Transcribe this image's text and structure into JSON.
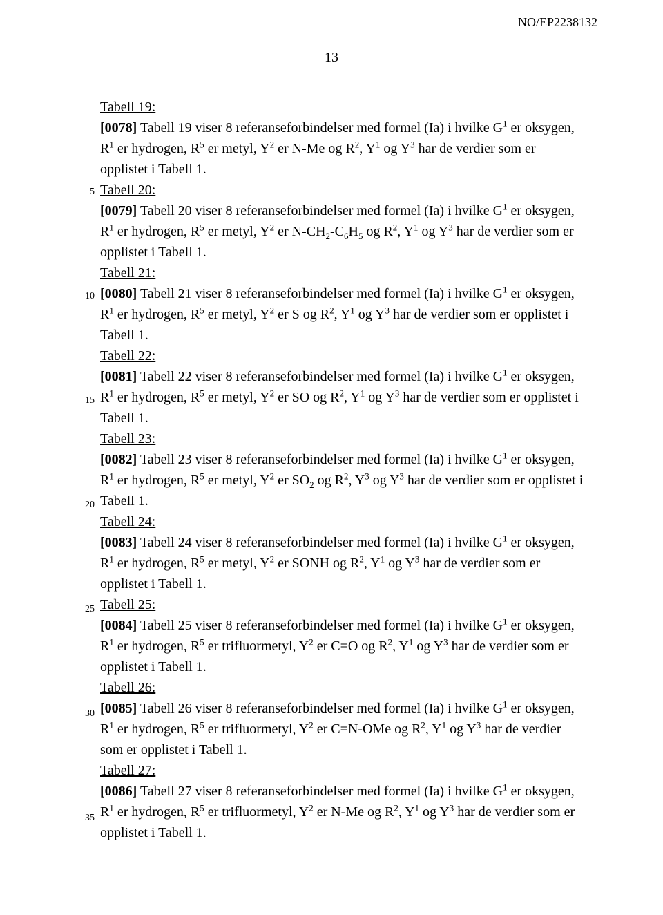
{
  "doc_header": "NO/EP2238132",
  "page_number": "13",
  "line_numbers": {
    "n5": "5",
    "n10": "10",
    "n15": "15",
    "n20": "20",
    "n25": "25",
    "n30": "30",
    "n35": "35"
  },
  "sections": [
    {
      "heading": "Tabell 19:",
      "num": "[0078]",
      "text_before": "  Tabell 19 viser 8 referanseforbindelser med formel (Ia) i hvilke G",
      "sup1": "1",
      "text1": " er oksygen, R",
      "sup2": "1",
      "text2": " er hydrogen, R",
      "sup3": "5",
      "text3": " er metyl, Y",
      "sup4": "2",
      "text4": " er N-Me og R",
      "sup5": "2",
      "text5": ", Y",
      "sup6": "1",
      "text6": " og Y",
      "sup7": "3",
      "text7": " har de verdier som er opplistet i Tabell 1."
    },
    {
      "heading": "Tabell 20:",
      "num": "[0079]",
      "text_before": "  Tabell 20 viser 8 referanseforbindelser med formel (Ia) i hvilke G",
      "sup1": "1",
      "text1": " er oksygen, R",
      "sup2": "1",
      "text2": " er hydrogen, R",
      "sup3": "5",
      "text3": " er metyl, Y",
      "sup4": "2",
      "text4": " er N-CH",
      "sub1": "2",
      "textsub1": "-C",
      "sub2": "6",
      "textsub2": "H",
      "sub3": "5",
      "textsub3": " og R",
      "sup5": "2",
      "text5": ", Y",
      "sup6": "1",
      "text6": " og Y",
      "sup7": "3",
      "text7": " har de verdier som er opplistet i Tabell 1."
    },
    {
      "heading": "Tabell 21:",
      "num": "[0080]",
      "text_before": "  Tabell 21 viser 8 referanseforbindelser med formel (Ia) i hvilke G",
      "sup1": "1",
      "text1": " er oksygen, R",
      "sup2": "1",
      "text2": " er hydrogen, R",
      "sup3": "5",
      "text3": " er metyl, Y",
      "sup4": "2",
      "text4": " er S og R",
      "sup5": "2",
      "text5": ", Y",
      "sup6": "1",
      "text6": " og Y",
      "sup7": "3",
      "text7": " har de verdier som er opplistet i Tabell 1."
    },
    {
      "heading": "Tabell 22:",
      "num": "[0081]",
      "text_before": "  Tabell 22 viser 8 referanseforbindelser med formel (Ia) i hvilke G",
      "sup1": "1",
      "text1": " er oksygen, R",
      "sup2": "1",
      "text2": " er hydrogen, R",
      "sup3": "5",
      "text3": " er metyl, Y",
      "sup4": "2",
      "text4": " er SO og R",
      "sup5": "2",
      "text5": ", Y",
      "sup6": "1",
      "text6": " og Y",
      "sup7": "3",
      "text7": " har de verdier som er opplistet i Tabell 1."
    },
    {
      "heading": "Tabell 23:",
      "num": "[0082]",
      "text_before": "  Tabell 23 viser 8 referanseforbindelser med formel (Ia) i hvilke G",
      "sup1": "1",
      "text1": " er oksygen, R",
      "sup2": "1",
      "text2": " er hydrogen, R",
      "sup3": "5",
      "text3": " er metyl, Y",
      "sup4": "2",
      "text4": " er SO",
      "sub1": "2",
      "textsub1": " og R",
      "sup5": "2",
      "text5": ", Y",
      "sup6": "3",
      "text6": " og Y",
      "sup7": "3",
      "text7": " har de verdier som er opplistet i Tabell 1."
    },
    {
      "heading": "Tabell 24:",
      "num": "[0083]",
      "text_before": "  Tabell 24 viser 8 referanseforbindelser med formel (Ia) i hvilke G",
      "sup1": "1",
      "text1": " er oksygen, R",
      "sup2": "1",
      "text2": " er hydrogen, R",
      "sup3": "5",
      "text3": " er metyl, Y",
      "sup4": "2",
      "text4": " er SONH og R",
      "sup5": "2",
      "text5": ", Y",
      "sup6": "1",
      "text6": " og Y",
      "sup7": "3",
      "text7": " har de verdier som er opplistet i Tabell 1."
    },
    {
      "heading": "Tabell 25:",
      "num": "[0084]",
      "text_before": "  Tabell 25 viser 8 referanseforbindelser med formel (Ia) i hvilke G",
      "sup1": "1",
      "text1": " er oksygen, R",
      "sup2": "1",
      "text2": " er hydrogen, R",
      "sup3": "5",
      "text3": " er trifluormetyl, Y",
      "sup4": "2",
      "text4": " er C=O og R",
      "sup5": "2",
      "text5": ", Y",
      "sup6": "1",
      "text6": " og Y",
      "sup7": "3",
      "text7": " har de verdier som er opplistet i Tabell 1."
    },
    {
      "heading": "Tabell 26:",
      "num": "[0085]",
      "text_before": "  Tabell 26 viser 8 referanseforbindelser med formel (Ia) i hvilke G",
      "sup1": "1",
      "text1": " er oksygen, R",
      "sup2": "1",
      "text2": " er hydrogen, R",
      "sup3": "5",
      "text3": " er trifluormetyl, Y",
      "sup4": "2",
      "text4": " er C=N-OMe og R",
      "sup5": "2",
      "text5": ", Y",
      "sup6": "1",
      "text6": " og Y",
      "sup7": "3",
      "text7": " har de verdier som er opplistet i Tabell 1."
    },
    {
      "heading": "Tabell 27:",
      "num": "[0086]",
      "text_before": "  Tabell 27 viser 8 referanseforbindelser med formel (Ia) i hvilke G",
      "sup1": "1",
      "text1": " er oksygen, R",
      "sup2": "1",
      "text2": " er hydrogen, R",
      "sup3": "5",
      "text3": " er trifluormetyl, Y",
      "sup4": "2",
      "text4": " er N-Me og R",
      "sup5": "2",
      "text5": ", Y",
      "sup6": "1",
      "text6": " og Y",
      "sup7": "3",
      "text7": " har de verdier som er opplistet i Tabell 1."
    }
  ],
  "line_number_tops": {
    "n5": 127,
    "n10": 278,
    "n15": 429,
    "n20": 580,
    "n25": 731,
    "n30": 882,
    "n35": 1033
  }
}
